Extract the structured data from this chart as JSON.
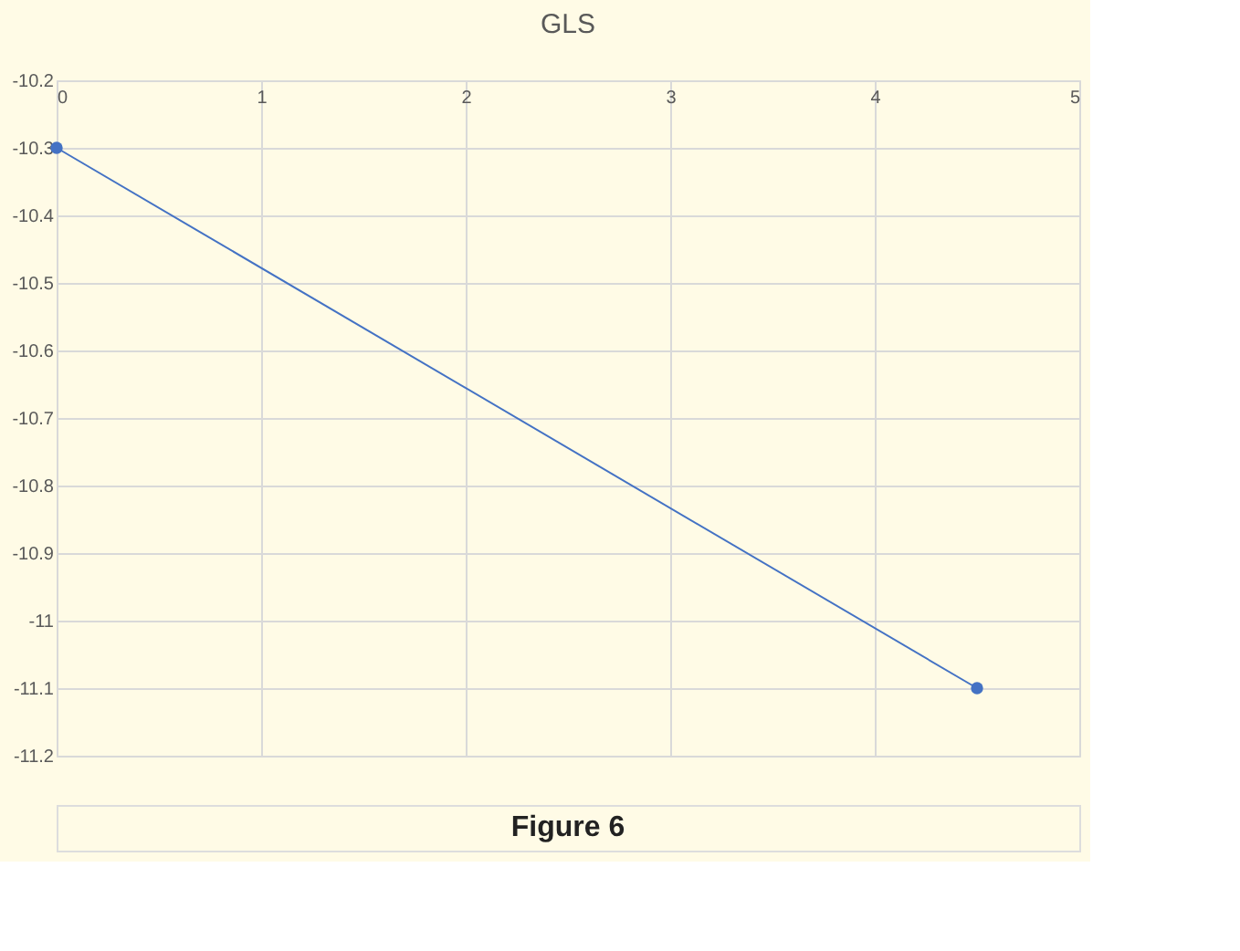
{
  "chart_data": {
    "type": "line",
    "title": "GLS",
    "x": [
      0,
      4.5
    ],
    "series": [
      {
        "color": "#4472c4",
        "values": [
          -10.3,
          -11.1
        ]
      }
    ],
    "xlim": [
      0,
      5
    ],
    "xticks": [
      0,
      1,
      2,
      3,
      4,
      5
    ],
    "ylim": [
      -11.2,
      -10.2
    ],
    "yticks": [
      -10.2,
      -10.3,
      -10.4,
      -10.5,
      -10.6,
      -10.7,
      -10.8,
      -10.9,
      -11,
      -11.1,
      -11.2
    ],
    "grid": true,
    "marker": "circle",
    "line_style": "solid",
    "annotations": [
      "Figure 6"
    ]
  }
}
